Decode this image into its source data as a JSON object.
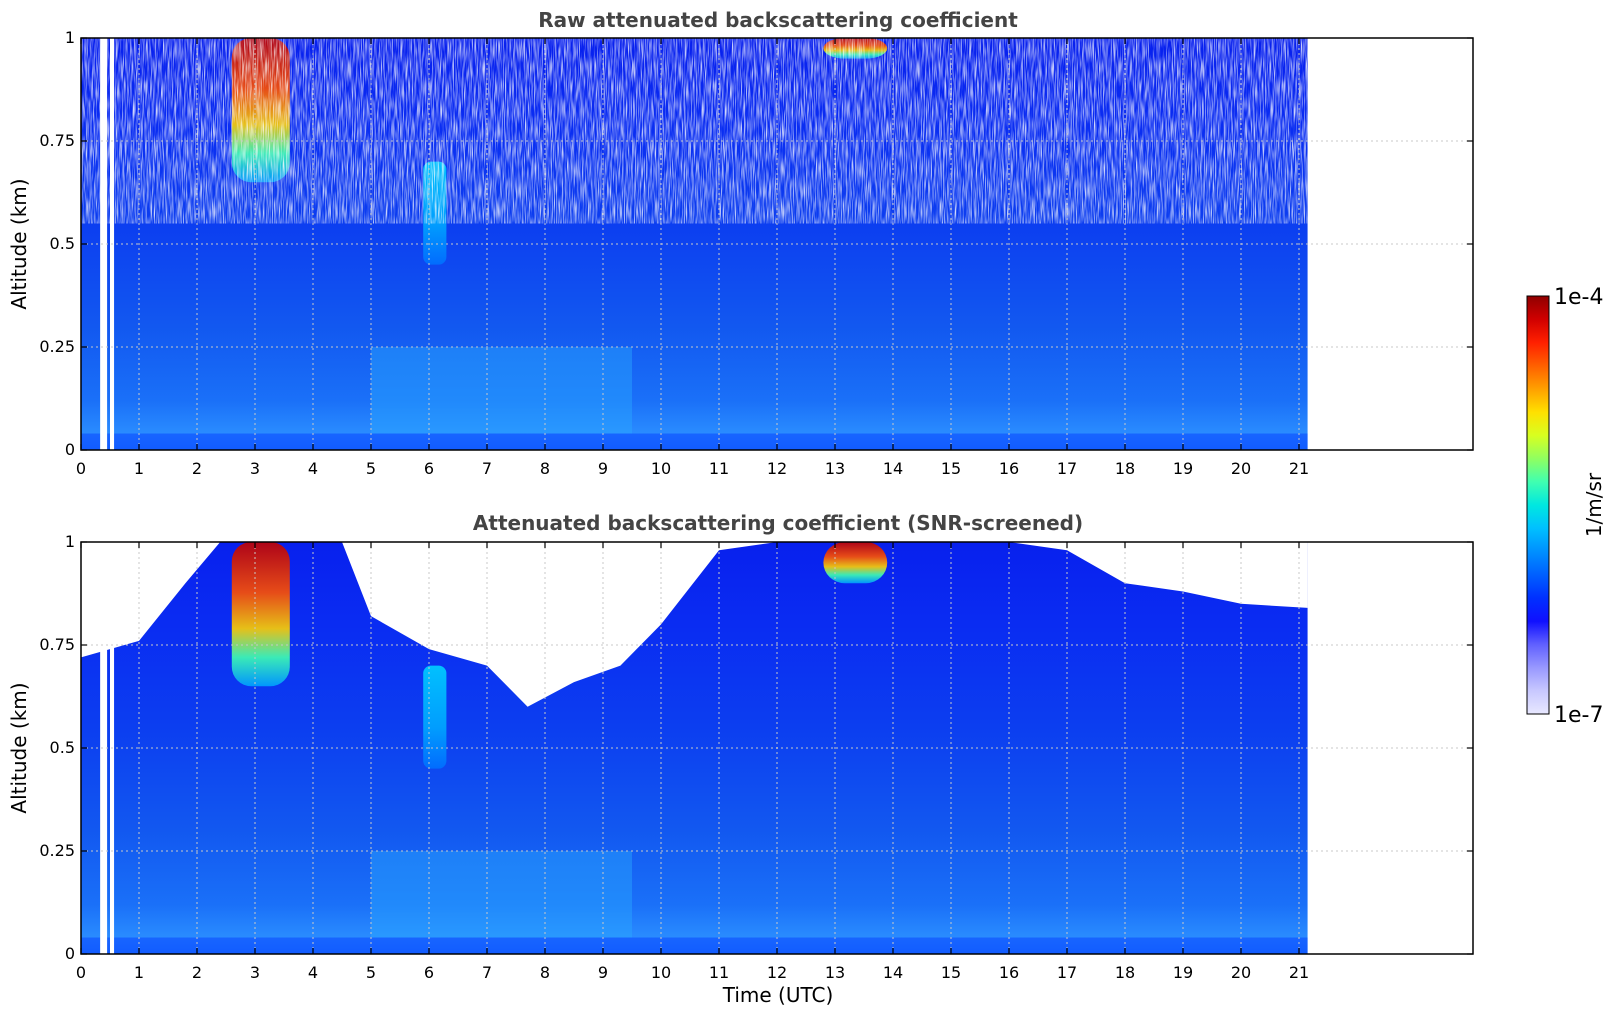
{
  "chart_data": [
    {
      "type": "heatmap",
      "title": "Raw attenuated backscattering coefficient",
      "xlabel": "",
      "ylabel": "Altitude (km)",
      "xlim": [
        0,
        24
      ],
      "ylim": [
        0,
        1
      ],
      "x_ticks": [
        "0",
        "1",
        "2",
        "3",
        "4",
        "5",
        "6",
        "7",
        "8",
        "9",
        "10",
        "11",
        "12",
        "13",
        "14",
        "15",
        "16",
        "17",
        "18",
        "19",
        "20",
        "21"
      ],
      "y_ticks": [
        "0",
        "0.25",
        "0.5",
        "0.75",
        "1"
      ],
      "data_end_time": 21.15,
      "data_gaps": [
        [
          0.33,
          0.45
        ],
        [
          0.5,
          0.57
        ]
      ],
      "grid": true,
      "features": [
        {
          "x": [
            2.6,
            3.6
          ],
          "y": [
            0.65,
            1.0
          ],
          "level": "high"
        },
        {
          "x": [
            5.9,
            6.3
          ],
          "y": [
            0.45,
            0.7
          ],
          "level": "mid"
        },
        {
          "x": [
            12.8,
            13.9
          ],
          "y": [
            0.95,
            1.0
          ],
          "level": "high"
        }
      ]
    },
    {
      "type": "heatmap",
      "title": "Attenuated backscattering coefficient (SNR-screened)",
      "xlabel": "Time (UTC)",
      "ylabel": "Altitude (km)",
      "xlim": [
        0,
        24
      ],
      "ylim": [
        0,
        1
      ],
      "x_ticks": [
        "0",
        "1",
        "2",
        "3",
        "4",
        "5",
        "6",
        "7",
        "8",
        "9",
        "10",
        "11",
        "12",
        "13",
        "14",
        "15",
        "16",
        "17",
        "18",
        "19",
        "20",
        "21"
      ],
      "y_ticks": [
        "0",
        "0.25",
        "0.5",
        "0.75",
        "1"
      ],
      "data_end_time": 21.15,
      "data_gaps": [
        [
          0.33,
          0.45
        ],
        [
          0.5,
          0.57
        ]
      ],
      "grid": true,
      "screening_top_km": [
        [
          0,
          0.72
        ],
        [
          1,
          0.76
        ],
        [
          1.8,
          0.9
        ],
        [
          2.4,
          1.0
        ],
        [
          3.8,
          1.0
        ],
        [
          4.5,
          1.0
        ],
        [
          5,
          0.82
        ],
        [
          6,
          0.74
        ],
        [
          7,
          0.7
        ],
        [
          7.7,
          0.6
        ],
        [
          8.5,
          0.66
        ],
        [
          9.3,
          0.7
        ],
        [
          10,
          0.8
        ],
        [
          11,
          0.98
        ],
        [
          12,
          1.0
        ],
        [
          16,
          1.0
        ],
        [
          17,
          0.98
        ],
        [
          18,
          0.9
        ],
        [
          19,
          0.88
        ],
        [
          20,
          0.85
        ],
        [
          21.15,
          0.84
        ]
      ],
      "features": [
        {
          "x": [
            2.6,
            3.6
          ],
          "y": [
            0.65,
            1.0
          ],
          "level": "high"
        },
        {
          "x": [
            5.9,
            6.3
          ],
          "y": [
            0.45,
            0.7
          ],
          "level": "mid"
        },
        {
          "x": [
            12.8,
            13.9
          ],
          "y": [
            0.9,
            1.0
          ],
          "level": "high"
        }
      ]
    }
  ],
  "colorbar": {
    "max_label": "1e-4",
    "min_label": "1e-7",
    "unit_label": "1/m/sr",
    "colors": [
      "#e8e8ff",
      "#c8c8ff",
      "#9898ff",
      "#6060ff",
      "#1010ff",
      "#0030ff",
      "#0060ff",
      "#0090ff",
      "#00c0ff",
      "#00e8e0",
      "#40ffb0",
      "#90ff60",
      "#d8ff20",
      "#ffe000",
      "#ffa000",
      "#ff6000",
      "#ff2000",
      "#d00000",
      "#900000"
    ]
  }
}
